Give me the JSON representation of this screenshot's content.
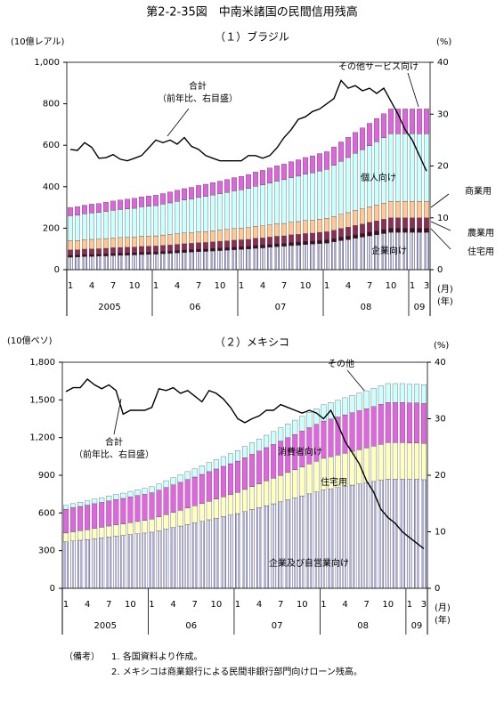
{
  "title": "第2-2-35図　中南米諸国の民間信用残高",
  "chart_data": [
    {
      "type": "stacked_bar_line",
      "title": "（１）ブラジル",
      "y_label": "(10億レアル)",
      "y2_label": "(%)",
      "x_month_label": "(月)",
      "x_year_label": "(年)",
      "categories": [
        "1",
        null,
        null,
        "4",
        null,
        null,
        "7",
        null,
        null,
        "10",
        null,
        null,
        "1",
        null,
        null,
        "4",
        null,
        null,
        "7",
        null,
        null,
        "10",
        null,
        null,
        "1",
        null,
        null,
        "4",
        null,
        null,
        "7",
        null,
        null,
        "10",
        null,
        null,
        "1",
        null,
        null,
        "4",
        null,
        null,
        "7",
        null,
        null,
        "10",
        null,
        null,
        "1",
        null,
        "3"
      ],
      "years": [
        "2005",
        "06",
        "07",
        "08",
        "09"
      ],
      "ylim": [
        0,
        1000
      ],
      "yticks": [
        0,
        200,
        400,
        600,
        800,
        {
          "value": 1000,
          "label": "1,000"
        }
      ],
      "y2lim": [
        0,
        40
      ],
      "y2ticks": [
        0,
        10,
        20,
        30,
        40
      ],
      "series": [
        {
          "name": "企業向け",
          "type": "bar",
          "color": "#7f7fb8",
          "hatch": true,
          "values": [
            60,
            61,
            63,
            64,
            65,
            66,
            68,
            69,
            70,
            71,
            73,
            74,
            75,
            77,
            79,
            81,
            83,
            85,
            87,
            88,
            90,
            92,
            94,
            96,
            98,
            100,
            103,
            105,
            108,
            111,
            113,
            116,
            118,
            121,
            123,
            126,
            128,
            134,
            140,
            145,
            151,
            157,
            163,
            168,
            174,
            180,
            180,
            180,
            180,
            180,
            180
          ]
        },
        {
          "name": "住宅用",
          "type": "bar",
          "color": "#3d1028",
          "hatch": false,
          "values": [
            10,
            10,
            10,
            10,
            10,
            11,
            11,
            11,
            11,
            11,
            11,
            11,
            11,
            11,
            11,
            12,
            12,
            12,
            12,
            12,
            13,
            13,
            13,
            13,
            13,
            13,
            14,
            14,
            14,
            14,
            14,
            15,
            15,
            15,
            15,
            15,
            16,
            16,
            17,
            17,
            18,
            18,
            19,
            19,
            20,
            20,
            20,
            20,
            20,
            20,
            20
          ]
        },
        {
          "name": "農業用",
          "type": "bar",
          "color": "#8b2f55",
          "hatch": false,
          "values": [
            25,
            25,
            26,
            26,
            26,
            26,
            27,
            27,
            27,
            27,
            28,
            28,
            28,
            29,
            29,
            29,
            30,
            30,
            31,
            31,
            31,
            32,
            32,
            33,
            33,
            33,
            34,
            34,
            35,
            36,
            36,
            37,
            37,
            38,
            38,
            39,
            39,
            40,
            42,
            43,
            44,
            45,
            46,
            48,
            49,
            50,
            50,
            50,
            50,
            50,
            50
          ]
        },
        {
          "name": "商業用",
          "type": "bar",
          "color": "#ffc896",
          "hatch": false,
          "values": [
            45,
            45,
            46,
            46,
            46,
            47,
            47,
            48,
            48,
            48,
            49,
            49,
            49,
            50,
            51,
            51,
            52,
            52,
            53,
            53,
            54,
            54,
            55,
            56,
            56,
            57,
            58,
            58,
            59,
            60,
            60,
            61,
            62,
            63,
            63,
            64,
            65,
            67,
            68,
            70,
            72,
            73,
            75,
            77,
            78,
            80,
            80,
            80,
            80,
            80,
            80
          ]
        },
        {
          "name": "個人向け",
          "type": "bar",
          "color": "#ccffff",
          "hatch": false,
          "values": [
            120,
            122,
            124,
            127,
            129,
            131,
            133,
            135,
            137,
            139,
            142,
            144,
            146,
            149,
            152,
            156,
            159,
            162,
            165,
            169,
            172,
            175,
            178,
            182,
            185,
            189,
            193,
            198,
            202,
            206,
            211,
            215,
            219,
            224,
            228,
            232,
            236,
            246,
            256,
            266,
            276,
            286,
            295,
            305,
            315,
            325,
            325,
            325,
            325,
            325,
            325
          ]
        },
        {
          "name": "その他サービス向け",
          "type": "bar",
          "color": "#dd66dd",
          "hatch": false,
          "values": [
            40,
            41,
            42,
            43,
            43,
            44,
            45,
            46,
            47,
            48,
            48,
            49,
            50,
            51,
            53,
            54,
            55,
            56,
            58,
            59,
            60,
            61,
            63,
            64,
            65,
            67,
            69,
            70,
            72,
            74,
            75,
            77,
            79,
            80,
            82,
            84,
            85,
            89,
            93,
            97,
            101,
            105,
            108,
            112,
            116,
            120,
            120,
            120,
            120,
            120,
            120
          ]
        },
        {
          "name": "合計",
          "note": "（前年比、右目盛）",
          "type": "line",
          "axis": "y2",
          "color": "#000000",
          "values": [
            23.2,
            23.0,
            24.5,
            23.6,
            21.5,
            21.6,
            22.2,
            21.3,
            21.0,
            21.5,
            22.0,
            23.5,
            25.0,
            24.5,
            25.0,
            24.2,
            25.5,
            23.8,
            23.2,
            22.0,
            21.5,
            21.0,
            21.0,
            21.0,
            21.0,
            22.0,
            22.0,
            21.5,
            22.0,
            23.5,
            25.5,
            27.0,
            29.0,
            29.5,
            30.5,
            31.0,
            32.0,
            33.0,
            36.5,
            35.0,
            35.5,
            34.5,
            35.0,
            34.0,
            35.0,
            32.5,
            30.0,
            27.0,
            25.0,
            22.0,
            19.0
          ]
        }
      ]
    },
    {
      "type": "stacked_bar_line",
      "title": "（２）メキシコ",
      "y_label": "(10億ペソ)",
      "y2_label": "(%)",
      "x_month_label": "(月)",
      "x_year_label": "(年)",
      "categories": [
        "1",
        null,
        null,
        "4",
        null,
        null,
        "7",
        null,
        null,
        "10",
        null,
        null,
        "1",
        null,
        null,
        "4",
        null,
        null,
        "7",
        null,
        null,
        "10",
        null,
        null,
        "1",
        null,
        null,
        "4",
        null,
        null,
        "7",
        null,
        null,
        "10",
        null,
        null,
        "1",
        null,
        null,
        "4",
        null,
        null,
        "7",
        null,
        null,
        "10",
        null,
        null,
        "1",
        null,
        "3"
      ],
      "years": [
        "2005",
        "06",
        "07",
        "08",
        "09"
      ],
      "ylim": [
        0,
        1800
      ],
      "yticks": [
        0,
        300,
        600,
        900,
        {
          "value": 1200,
          "label": "1,200"
        },
        {
          "value": 1500,
          "label": "1,500"
        },
        {
          "value": 1800,
          "label": "1,800"
        }
      ],
      "y2lim": [
        0,
        40
      ],
      "y2ticks": [
        0,
        10,
        20,
        30,
        40
      ],
      "series": [
        {
          "name": "企業及び自営業向け",
          "type": "bar",
          "color": "#8c8cc8",
          "hatch": true,
          "values": [
            370,
            377,
            383,
            389,
            396,
            402,
            409,
            415,
            421,
            428,
            434,
            440,
            447,
            459,
            472,
            484,
            496,
            509,
            521,
            533,
            546,
            558,
            571,
            583,
            595,
            611,
            627,
            642,
            658,
            673,
            689,
            705,
            720,
            736,
            752,
            767,
            783,
            792,
            802,
            812,
            822,
            831,
            841,
            851,
            861,
            870,
            870,
            870,
            868,
            868,
            865
          ]
        },
        {
          "name": "住宅用",
          "type": "bar",
          "color": "#ffffc0",
          "hatch": false,
          "values": [
            70,
            73,
            76,
            78,
            81,
            84,
            87,
            90,
            92,
            95,
            98,
            101,
            104,
            109,
            115,
            120,
            125,
            131,
            136,
            142,
            147,
            153,
            158,
            164,
            169,
            176,
            183,
            190,
            197,
            203,
            210,
            217,
            224,
            231,
            238,
            245,
            252,
            256,
            260,
            264,
            269,
            273,
            277,
            281,
            286,
            290,
            290,
            290,
            289,
            289,
            288
          ]
        },
        {
          "name": "消費者向け",
          "type": "bar",
          "color": "#e066e0",
          "hatch": false,
          "values": [
            190,
            192,
            193,
            195,
            197,
            198,
            200,
            202,
            203,
            205,
            207,
            208,
            210,
            213,
            216,
            220,
            223,
            226,
            229,
            232,
            236,
            239,
            242,
            245,
            249,
            253,
            257,
            261,
            265,
            269,
            273,
            277,
            281,
            285,
            289,
            293,
            297,
            300,
            302,
            305,
            307,
            310,
            312,
            315,
            318,
            320,
            320,
            320,
            319,
            319,
            319
          ]
        },
        {
          "name": "その他",
          "type": "bar",
          "color": "#ccffff",
          "hatch": false,
          "values": [
            30,
            32,
            33,
            35,
            36,
            38,
            39,
            41,
            42,
            44,
            45,
            47,
            48,
            51,
            54,
            57,
            60,
            63,
            66,
            69,
            72,
            75,
            78,
            81,
            84,
            88,
            92,
            95,
            99,
            103,
            107,
            110,
            114,
            118,
            122,
            125,
            129,
            131,
            134,
            136,
            138,
            141,
            143,
            145,
            148,
            150,
            150,
            150,
            149,
            149,
            149
          ]
        },
        {
          "name": "合計",
          "note": "（前年比、右目盛）",
          "type": "line",
          "axis": "y2",
          "color": "#000000",
          "values": [
            34.8,
            35.5,
            35.5,
            37.0,
            36.0,
            35.3,
            36.0,
            35.0,
            30.8,
            31.5,
            31.5,
            31.5,
            32.0,
            35.3,
            35.0,
            35.5,
            34.5,
            35.0,
            34.0,
            33.0,
            35.0,
            34.5,
            33.5,
            32.0,
            30.0,
            29.3,
            30.0,
            30.5,
            31.5,
            31.5,
            32.5,
            32.0,
            31.5,
            31.0,
            31.5,
            31.0,
            30.0,
            31.5,
            29.0,
            26.0,
            24.0,
            22.0,
            19.0,
            17.0,
            14.0,
            12.5,
            11.5,
            10.0,
            9.0,
            8.0,
            7.0
          ]
        }
      ]
    }
  ],
  "notes": [
    "（備考）",
    "1. 各国資料より作成。",
    "2. メキシコは商業銀行による民間非銀行部門向けローン残高。"
  ]
}
